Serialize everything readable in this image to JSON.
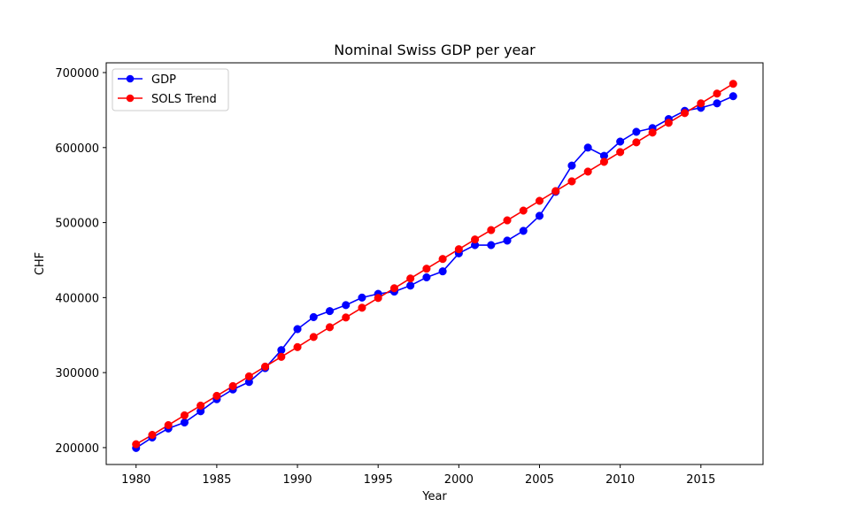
{
  "chart_data": {
    "type": "line",
    "title": "Nominal Swiss GDP per year",
    "xlabel": "Year",
    "ylabel": "CHF",
    "xlim": [
      1978.15,
      2018.85
    ],
    "ylim": [
      177500,
      713000
    ],
    "xticks": [
      1980,
      1985,
      1990,
      1995,
      2000,
      2005,
      2010,
      2015
    ],
    "yticks": [
      200000,
      300000,
      400000,
      500000,
      600000,
      700000
    ],
    "grid": false,
    "legend_position": "top-left",
    "x": [
      1980,
      1981,
      1982,
      1983,
      1984,
      1985,
      1986,
      1987,
      1988,
      1989,
      1990,
      1991,
      1992,
      1993,
      1994,
      1995,
      1996,
      1997,
      1998,
      1999,
      2000,
      2001,
      2002,
      2003,
      2004,
      2005,
      2006,
      2007,
      2008,
      2009,
      2010,
      2011,
      2012,
      2013,
      2014,
      2015,
      2016,
      2017
    ],
    "series": [
      {
        "name": "GDP",
        "color": "#0000ff",
        "marker": "circle",
        "values": [
          199500,
          213500,
          225500,
          233500,
          248500,
          264500,
          277500,
          287500,
          306000,
          330000,
          358000,
          374000,
          382000,
          390000,
          400000,
          405000,
          408000,
          416000,
          427000,
          435000,
          459000,
          470000,
          470000,
          476000,
          489000,
          509000,
          541000,
          576000,
          600000,
          589000,
          608000,
          621000,
          626000,
          638000,
          649000,
          653000,
          659000,
          668500
        ]
      },
      {
        "name": "SOLS Trend",
        "color": "#ff0000",
        "marker": "circle",
        "values": [
          204500,
          217000,
          230000,
          243000,
          256000,
          269000,
          282000,
          295000,
          308000,
          321000,
          334000,
          347500,
          360500,
          373500,
          386500,
          399500,
          412500,
          425500,
          438500,
          451500,
          464500,
          477500,
          490000,
          503000,
          516000,
          529000,
          542000,
          555000,
          568000,
          581000,
          594000,
          607000,
          620000,
          633000,
          646000,
          659000,
          672000,
          685000
        ]
      }
    ]
  }
}
